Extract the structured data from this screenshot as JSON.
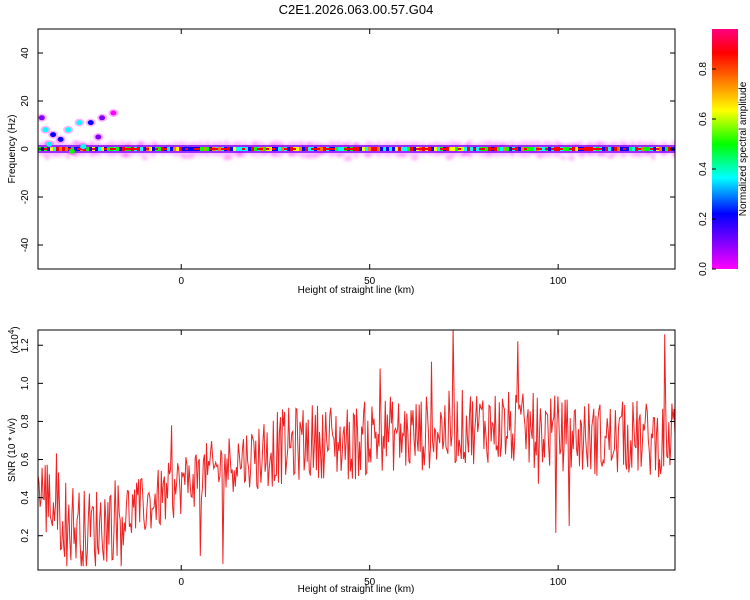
{
  "title": "C2E1.2026.063.00.57.G04",
  "chart_data": [
    {
      "type": "heatmap",
      "xlabel": "Height of straight line (km)",
      "ylabel": "Frequency (Hz)",
      "xlim": [
        -38,
        131
      ],
      "ylim": [
        -50,
        50
      ],
      "x_ticks": [
        0,
        50,
        100
      ],
      "x_tick_labels": [
        "0",
        "50",
        "100"
      ],
      "y_ticks": [
        -40,
        -20,
        0,
        20,
        40
      ],
      "y_tick_labels": [
        "-40",
        "-20",
        "0",
        "20",
        "40"
      ],
      "ridge_frequency_hz": 0,
      "colorbar": {
        "label": "Normalized spectral amplitude",
        "range": [
          0,
          0.96
        ],
        "ticks": [
          0.0,
          0.2,
          0.4,
          0.6,
          0.8
        ],
        "tick_labels": [
          "0.0",
          "0.2",
          "0.4",
          "0.6",
          "0.8"
        ],
        "colormap": [
          "#ff00ff",
          "#7f00ff",
          "#0000ff",
          "#00ffff",
          "#00ff00",
          "#ffff00",
          "#ff7f00",
          "#ff0000",
          "#ff0080"
        ]
      },
      "features": [
        {
          "description": "main ridge near 0 Hz spanning full height range"
        },
        {
          "description": "scattered blobs between 0 and 15 Hz at heights -38 to -25 km"
        }
      ]
    },
    {
      "type": "line",
      "xlabel": "Height of straight line (km)",
      "ylabel": "SNR (10 * v/v)",
      "y_scale_label": "(x10",
      "y_scale_exp": "4",
      "y_scale_close": ")",
      "xlim": [
        -38,
        131
      ],
      "ylim": [
        0.02,
        1.28
      ],
      "x_ticks": [
        0,
        50,
        100
      ],
      "x_tick_labels": [
        "0",
        "50",
        "100"
      ],
      "y_ticks": [
        0.2,
        0.4,
        0.6,
        0.8,
        1.0,
        1.2
      ],
      "y_tick_labels": [
        "0.2",
        "0.4",
        "0.6",
        "0.8",
        "1.0",
        "1.2"
      ],
      "line_color": "#ee2222",
      "series": [
        {
          "x": [
            -38,
            -30,
            -25,
            -20,
            -15,
            -10,
            -5,
            0,
            5,
            10,
            15,
            20,
            25,
            30,
            35,
            40,
            45,
            50,
            55,
            60,
            65,
            70,
            75,
            80,
            85,
            90,
            95,
            100,
            105,
            110,
            115,
            120,
            125,
            131
          ],
          "values": [
            0.45,
            0.28,
            0.22,
            0.27,
            0.32,
            0.35,
            0.4,
            0.47,
            0.52,
            0.55,
            0.6,
            0.62,
            0.66,
            0.68,
            0.7,
            0.7,
            0.68,
            0.72,
            0.74,
            0.72,
            0.74,
            0.76,
            0.77,
            0.78,
            0.77,
            0.75,
            0.75,
            0.74,
            0.72,
            0.71,
            0.7,
            0.72,
            0.7,
            0.72
          ]
        }
      ]
    }
  ]
}
